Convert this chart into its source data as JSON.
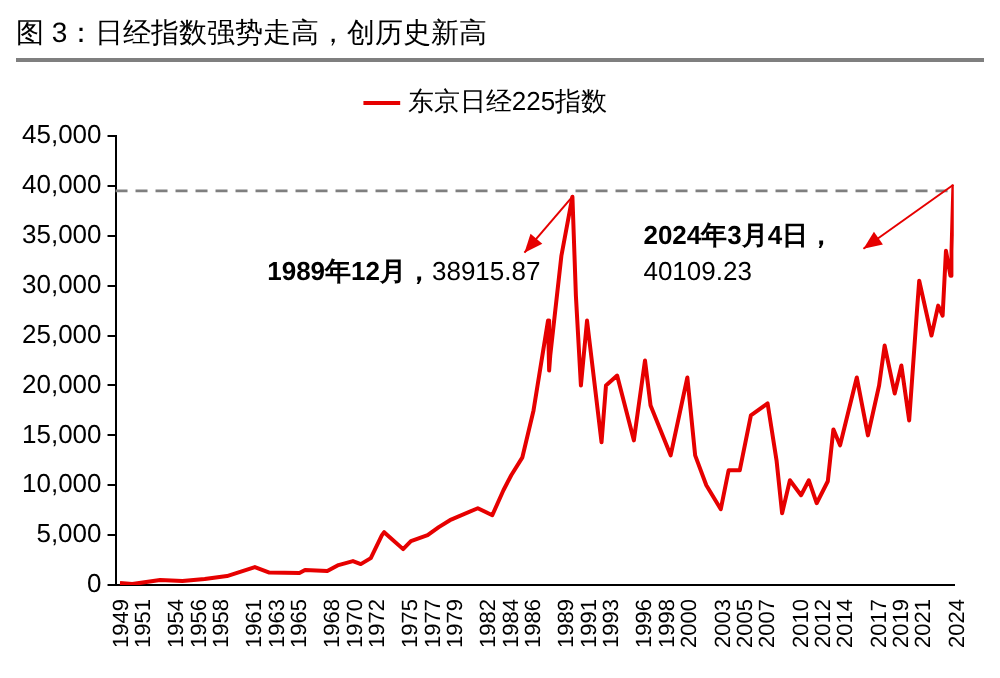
{
  "chart_data": {
    "type": "line",
    "title": "图 3：日经指数强势走高，创历史新高",
    "x": [
      1949.4,
      1950.5,
      1953,
      1955,
      1957,
      1959,
      1961.5,
      1962.8,
      1965.5,
      1966,
      1968,
      1969,
      1970.3,
      1971,
      1971.9,
      1972.9,
      1973.1,
      1973.6,
      1974.8,
      1975.5,
      1977,
      1978,
      1979,
      1981.5,
      1982.8,
      1983.8,
      1984.5,
      1985.5,
      1986.5,
      1987.8,
      1987.9,
      1988,
      1989,
      1989.99,
      1990.3,
      1990.75,
      1991.3,
      1992.6,
      1993,
      1994,
      1995.5,
      1996.5,
      1997,
      1998.8,
      2000.3,
      2001,
      2002,
      2003.3,
      2004,
      2005,
      2006,
      2007.5,
      2008.3,
      2008.8,
      2009.5,
      2010.5,
      2011.2,
      2011.9,
      2012.9,
      2013.4,
      2014,
      2015.5,
      2016.5,
      2017.5,
      2018,
      2018.9,
      2019.5,
      2020.2,
      2020.9,
      2021.1,
      2022.2,
      2022.8,
      2023.2,
      2023.5,
      2023.9,
      2024.0,
      2024.17
    ],
    "series": [
      {
        "name": "东京日经225指数",
        "color": "#e60000",
        "values": [
          200,
          100,
          500,
          400,
          600,
          900,
          1800,
          1250,
          1200,
          1500,
          1400,
          2000,
          2400,
          2100,
          2700,
          5000,
          5300,
          4800,
          3600,
          4400,
          5000,
          5800,
          6500,
          7700,
          7000,
          9500,
          11000,
          12800,
          17500,
          26500,
          21500,
          23000,
          33000,
          38915.87,
          29000,
          20000,
          26500,
          14300,
          20000,
          21000,
          14500,
          22500,
          18000,
          13000,
          20800,
          13000,
          10000,
          7600,
          11500,
          11500,
          17000,
          18200,
          12500,
          7200,
          10500,
          9000,
          10500,
          8200,
          10400,
          15600,
          14000,
          20800,
          15000,
          20000,
          24000,
          19200,
          22000,
          16500,
          27500,
          30500,
          25000,
          28000,
          27000,
          33500,
          31000,
          33500,
          40109.23
        ]
      }
    ],
    "xlim": [
      1949,
      2024.2
    ],
    "xticks": [
      1949,
      1951,
      1954,
      1956,
      1958,
      1961,
      1963,
      1965,
      1968,
      1970,
      1972,
      1975,
      1977,
      1979,
      1982,
      1984,
      1986,
      1989,
      1991,
      1993,
      1996,
      1998,
      2000,
      2003,
      2005,
      2007,
      2010,
      2012,
      2014,
      2017,
      2019,
      2021,
      2024
    ],
    "ylim": [
      0,
      45000
    ],
    "yticks": [
      0,
      {
        "value": 5000,
        "label": "5,000"
      },
      {
        "value": 10000,
        "label": "10,000"
      },
      {
        "value": 15000,
        "label": "15,000"
      },
      {
        "value": 20000,
        "label": "20,000"
      },
      {
        "value": 25000,
        "label": "25,000"
      },
      {
        "value": 30000,
        "label": "30,000"
      },
      {
        "value": 35000,
        "label": "35,000"
      },
      {
        "value": 40000,
        "label": "40,000"
      },
      {
        "value": 45000,
        "label": "45,000"
      }
    ],
    "ref_lines": [
      {
        "axis": "y",
        "value": 39500,
        "color": "#7f7f7f",
        "line_style": "dashed"
      }
    ],
    "annotations": [
      {
        "text": "1989年12月，38915.87",
        "x": 1989.99,
        "y": 38915.87
      },
      {
        "text": "2024年3月4日，40109.23",
        "x": 2024.17,
        "y": 40109.23
      }
    ],
    "legend": "top",
    "grid": false,
    "marker": "none",
    "line_style": "solid"
  }
}
